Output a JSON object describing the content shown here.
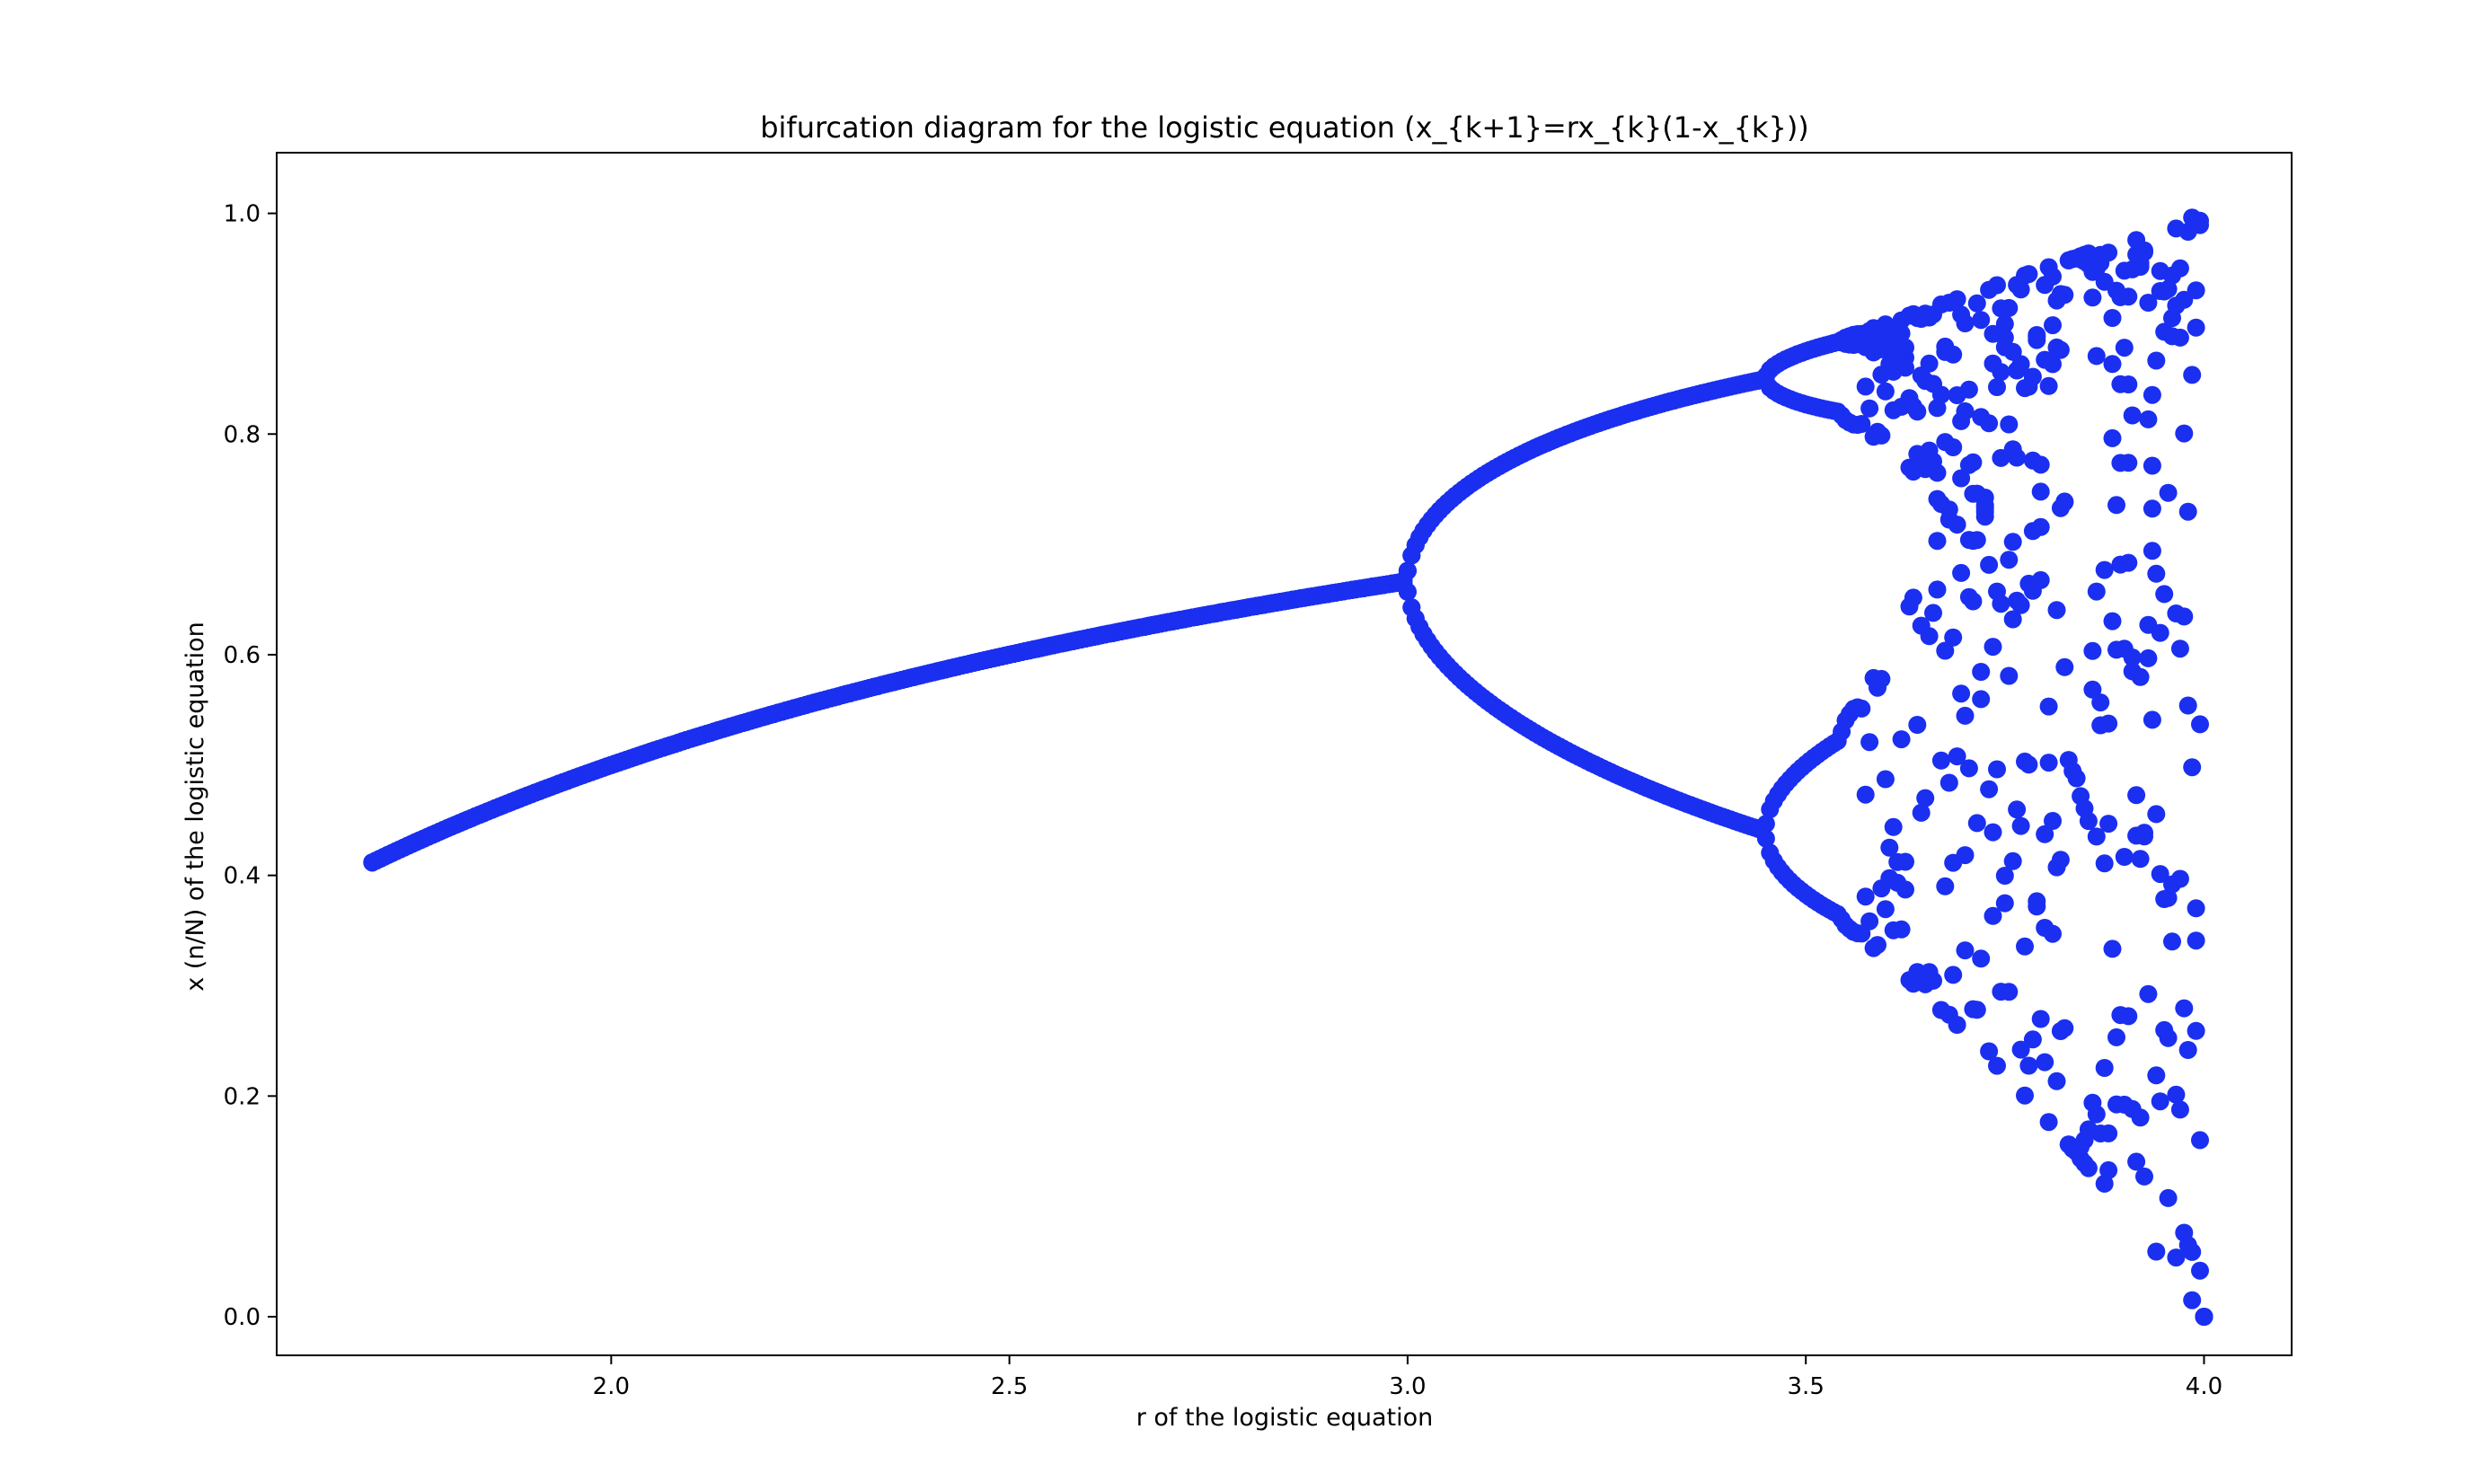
{
  "chart_data": {
    "type": "scatter",
    "title": "bifurcation diagram for the logistic equation (x_{k+1}=rx_{k}(1-x_{k}))",
    "xlabel": "r of the logistic equation",
    "ylabel": "x (n/N) of the logistic equation",
    "xlim": [
      1.58,
      4.11
    ],
    "ylim": [
      -0.035,
      1.055
    ],
    "xticks": [
      2.0,
      2.5,
      3.0,
      3.5,
      4.0
    ],
    "xtick_labels": [
      "2.0",
      "2.5",
      "3.0",
      "3.5",
      "4.0"
    ],
    "yticks": [
      0.0,
      0.2,
      0.4,
      0.6,
      0.8,
      1.0
    ],
    "ytick_labels": [
      "0.0",
      "0.2",
      "0.4",
      "0.6",
      "0.8",
      "1.0"
    ],
    "grid": false,
    "legend": "none",
    "series": [
      {
        "color": "#1a2ff0",
        "r_start": 1.7,
        "r_end": 4.0,
        "r_step": 0.005,
        "iterations_per_r": 5
      }
    ]
  }
}
